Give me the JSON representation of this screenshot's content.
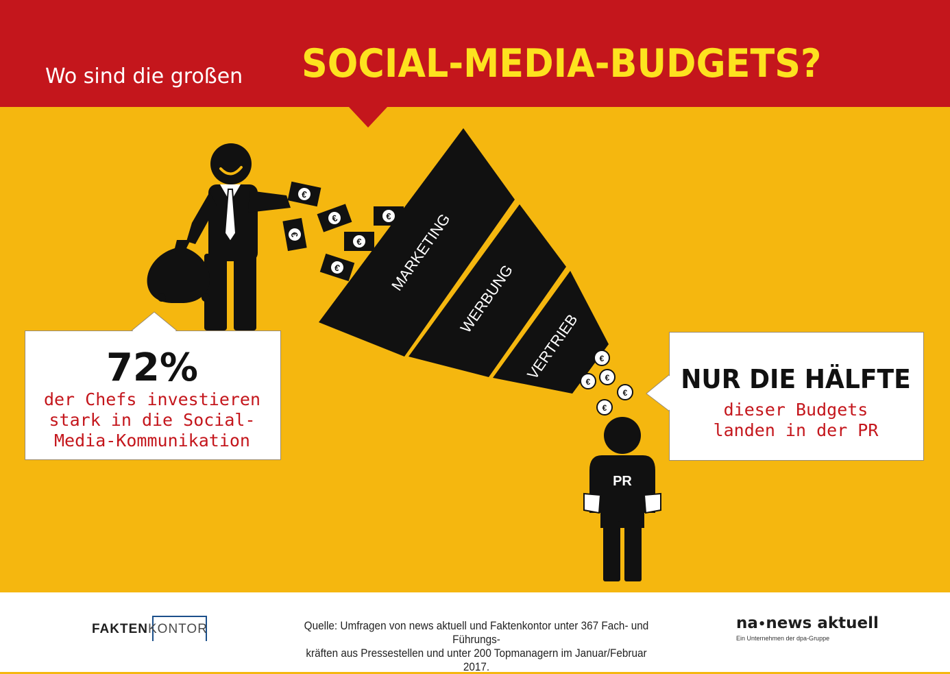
{
  "header": {
    "subtitle": "Wo sind die großen",
    "title": "SOCIAL-MEDIA-BUDGETS?"
  },
  "funnel": {
    "tiers": [
      "MARKETING",
      "WERBUNG",
      "VERTRIEB"
    ]
  },
  "pr_figure": {
    "label": "PR"
  },
  "currency_symbol": "€",
  "left_callout": {
    "value": "72%",
    "lines": [
      "der Chefs investieren",
      "stark in die Social-",
      "Media-Kommunikation"
    ]
  },
  "right_callout": {
    "title": "NUR DIE HÄLFTE",
    "lines": [
      "dieser Budgets",
      "landen in der PR"
    ]
  },
  "footer": {
    "logo_left_bold": "FAKTEN",
    "logo_left_thin": "KONTOR",
    "source_lines": [
      "Quelle: Umfragen von news aktuell und Faktenkontor unter 367 Fach- und Führungs-",
      "kräften aus Pressestellen und unter 200 Topmanagern im Januar/Februar 2017."
    ],
    "logo_right_prefix": "na",
    "logo_right_name": "news aktuell",
    "logo_right_sub": "Ein Unternehmen der dpa-Gruppe"
  },
  "colors": {
    "header_red": "#c4161c",
    "background_yellow": "#f5b70f",
    "title_yellow": "#fde21f",
    "accent_red_text": "#c4161c"
  }
}
